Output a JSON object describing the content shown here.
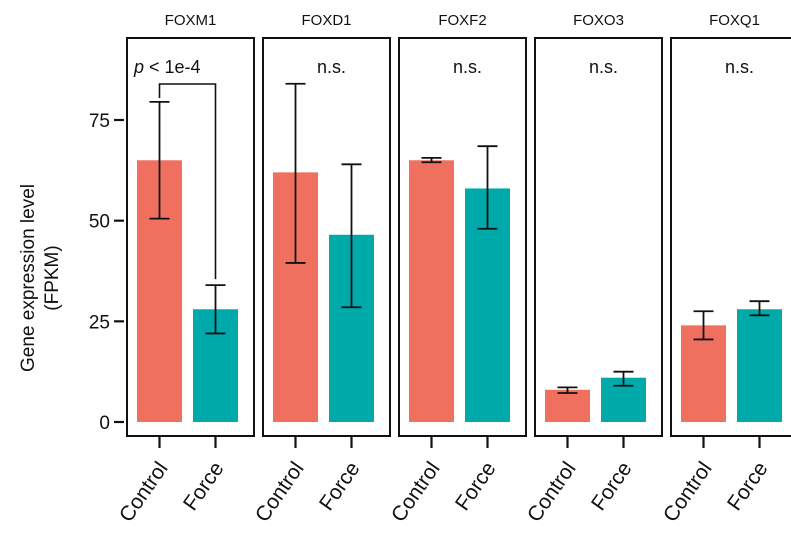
{
  "chart_data": {
    "type": "bar",
    "facets": [
      "FOXM1",
      "FOXD1",
      "FOXF2",
      "FOXO3",
      "FOXQ1"
    ],
    "categories": [
      "Control",
      "Force"
    ],
    "colors": {
      "Control": "#F07060",
      "Force": "#00AAAA"
    },
    "ylabel_lines": [
      "Gene expression level",
      "(FPKM)"
    ],
    "yticks": [
      "0",
      "25",
      "50",
      "75"
    ],
    "ytick_values": [
      0,
      25,
      50,
      75
    ],
    "ylim": [
      0,
      88
    ],
    "panels": [
      {
        "gene": "FOXM1",
        "annotation_prefix": "p",
        "annotation": " < 1e-4",
        "values": [
          65,
          28
        ],
        "err_low": [
          50.5,
          22
        ],
        "err_high": [
          79.5,
          34
        ]
      },
      {
        "gene": "FOXD1",
        "annotation": "n.s.",
        "values": [
          62,
          46.5
        ],
        "err_low": [
          39.5,
          28.5
        ],
        "err_high": [
          84,
          64
        ]
      },
      {
        "gene": "FOXF2",
        "annotation": "n.s.",
        "values": [
          65,
          58
        ],
        "err_low": [
          64.5,
          48
        ],
        "err_high": [
          65.6,
          68.5
        ]
      },
      {
        "gene": "FOXO3",
        "annotation": "n.s.",
        "values": [
          8,
          11
        ],
        "err_low": [
          7.2,
          9
        ],
        "err_high": [
          8.6,
          12.5
        ]
      },
      {
        "gene": "FOXQ1",
        "annotation": "n.s.",
        "values": [
          24,
          28
        ],
        "err_low": [
          20.5,
          26.5
        ],
        "err_high": [
          27.5,
          30
        ]
      }
    ]
  }
}
